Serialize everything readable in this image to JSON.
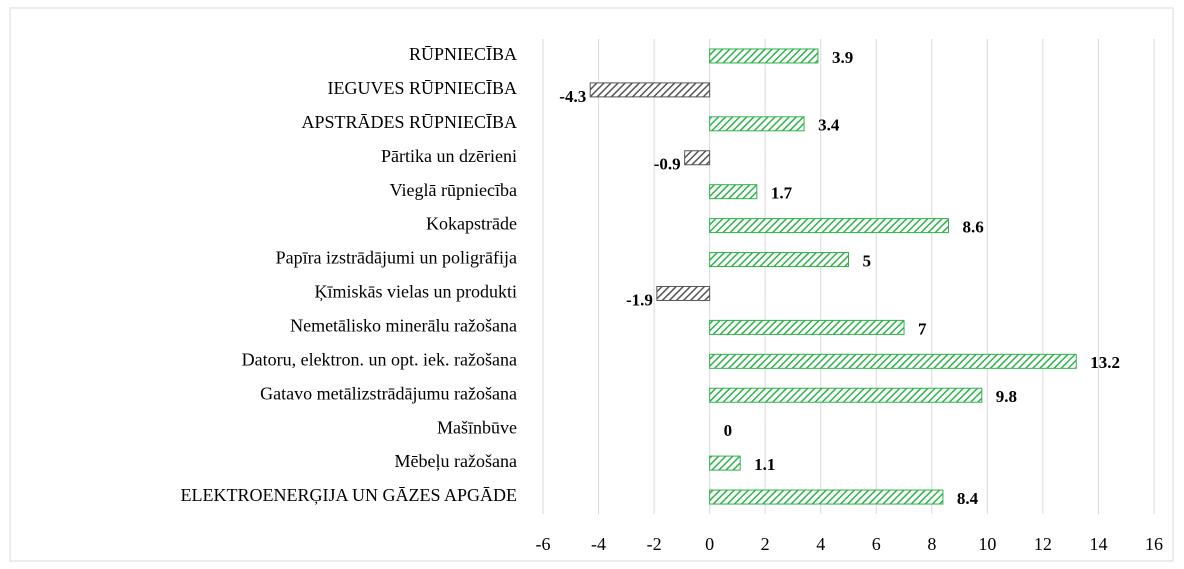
{
  "chart_data": {
    "type": "hbar",
    "categories": [
      "RŪPNIECĪBA",
      "IEGUVES RŪPNIECĪBA",
      "APSTRĀDES RŪPNIECĪBA",
      "Pārtika un dzērieni",
      "Vieglā rūpniecība",
      "Kokapstrāde",
      "Papīra izstrādājumi un poligrāfija",
      "Ķīmiskās vielas un produkti",
      "Nemetālisko minerālu ražošana",
      "Datoru, elektron. un opt. iek. ražošana",
      "Gatavo metālizstrādājumu ražošana",
      "Mašīnbūve",
      "Mēbeļu ražošana",
      "ELEKTROENERĢIJA UN GĀZES APGĀDE"
    ],
    "values": [
      3.9,
      -4.3,
      3.4,
      -0.9,
      1.7,
      8.6,
      5,
      -1.9,
      7,
      13.2,
      9.8,
      0,
      1.1,
      8.4
    ],
    "colors": [
      "#2db34a",
      "#555555",
      "#2db34a",
      "#555555",
      "#2db34a",
      "#2db34a",
      "#2db34a",
      "#555555",
      "#2db34a",
      "#2db34a",
      "#2db34a",
      "#2db34a",
      "#2db34a",
      "#2db34a"
    ],
    "xlim": [
      -6,
      16
    ],
    "xticks": [
      -6,
      -4,
      -2,
      0,
      2,
      4,
      6,
      8,
      10,
      12,
      14,
      16
    ],
    "grid": true
  }
}
